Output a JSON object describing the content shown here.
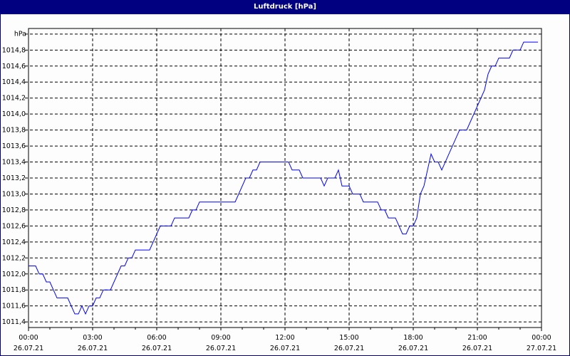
{
  "title": "Luftdruck [hPa]",
  "colors": {
    "titlebar": "#000080",
    "line": "#0000ff",
    "grid": "#000000"
  },
  "chart_data": {
    "type": "line",
    "title": "Luftdruck [hPa]",
    "ylabel": "hPa",
    "ylim": [
      1011.33,
      1015.07
    ],
    "yticks": [
      "1011,4",
      "1011,6",
      "1011,8",
      "1012,0",
      "1012,2",
      "1012,4",
      "1012,6",
      "1012,8",
      "1013,0",
      "1013,2",
      "1013,4",
      "1013,6",
      "1013,8",
      "1014,0",
      "1014,2",
      "1014,4",
      "1014,6",
      "1014,8"
    ],
    "ytick_values": [
      1011.4,
      1011.6,
      1011.8,
      1012.0,
      1012.2,
      1012.4,
      1012.6,
      1012.8,
      1013.0,
      1013.2,
      1013.4,
      1013.6,
      1013.8,
      1014.0,
      1014.2,
      1014.4,
      1014.6,
      1014.8
    ],
    "xlim": [
      "26.07.21 00:00",
      "27.07.21 00:00"
    ],
    "xticks": [
      {
        "time": "00:00",
        "date": "26.07.21"
      },
      {
        "time": "03:00",
        "date": "26.07.21"
      },
      {
        "time": "06:00",
        "date": "26.07.21"
      },
      {
        "time": "09:00",
        "date": "26.07.21"
      },
      {
        "time": "12:00",
        "date": "26.07.21"
      },
      {
        "time": "15:00",
        "date": "26.07.21"
      },
      {
        "time": "18:00",
        "date": "26.07.21"
      },
      {
        "time": "21:00",
        "date": "26.07.21"
      },
      {
        "time": "00:00",
        "date": "27.07.21"
      }
    ],
    "grid": true,
    "grid_style": "dashed",
    "series": [
      {
        "x": [
          "00:00",
          "00:20",
          "00:30",
          "00:40",
          "00:50",
          "01:00",
          "01:20",
          "01:50",
          "02:10",
          "02:20",
          "02:30",
          "02:40",
          "02:50",
          "03:00",
          "03:10",
          "03:20",
          "03:30",
          "03:50",
          "04:10",
          "04:20",
          "04:30",
          "04:40",
          "04:50",
          "05:00",
          "05:40",
          "06:00",
          "06:10",
          "06:40",
          "06:50",
          "07:30",
          "07:40",
          "07:50",
          "08:00",
          "09:40",
          "10:10",
          "10:20",
          "10:30",
          "10:40",
          "10:50",
          "12:10",
          "12:20",
          "12:40",
          "12:50",
          "13:40",
          "13:50",
          "14:00",
          "14:20",
          "14:30",
          "14:40",
          "15:00",
          "15:10",
          "15:30",
          "15:40",
          "16:20",
          "16:30",
          "16:40",
          "16:50",
          "17:10",
          "17:30",
          "17:40",
          "17:50",
          "18:00",
          "18:10",
          "18:20",
          "18:30",
          "18:40",
          "18:50",
          "19:00",
          "19:10",
          "19:20",
          "20:10",
          "20:30",
          "21:00",
          "21:20",
          "21:30",
          "21:40",
          "21:50",
          "22:00",
          "22:30",
          "22:40",
          "23:00",
          "23:10",
          "23:50"
        ],
        "y": [
          1012.1,
          1012.1,
          1012.0,
          1012.0,
          1011.9,
          1011.9,
          1011.7,
          1011.7,
          1011.5,
          1011.5,
          1011.6,
          1011.5,
          1011.6,
          1011.6,
          1011.7,
          1011.7,
          1011.8,
          1011.8,
          1012.0,
          1012.1,
          1012.1,
          1012.2,
          1012.2,
          1012.3,
          1012.3,
          1012.5,
          1012.6,
          1012.6,
          1012.7,
          1012.7,
          1012.8,
          1012.8,
          1012.9,
          1012.9,
          1013.2,
          1013.2,
          1013.3,
          1013.3,
          1013.4,
          1013.4,
          1013.3,
          1013.3,
          1013.2,
          1013.2,
          1013.1,
          1013.2,
          1013.2,
          1013.3,
          1013.1,
          1013.1,
          1013.0,
          1013.0,
          1012.9,
          1012.9,
          1012.8,
          1012.8,
          1012.7,
          1012.7,
          1012.5,
          1012.5,
          1012.6,
          1012.6,
          1012.7,
          1013.0,
          1013.1,
          1013.3,
          1013.5,
          1013.4,
          1013.4,
          1013.3,
          1013.8,
          1013.8,
          1014.1,
          1014.3,
          1014.5,
          1014.6,
          1014.6,
          1014.7,
          1014.7,
          1014.8,
          1014.8,
          1014.9,
          1014.9
        ]
      }
    ]
  }
}
